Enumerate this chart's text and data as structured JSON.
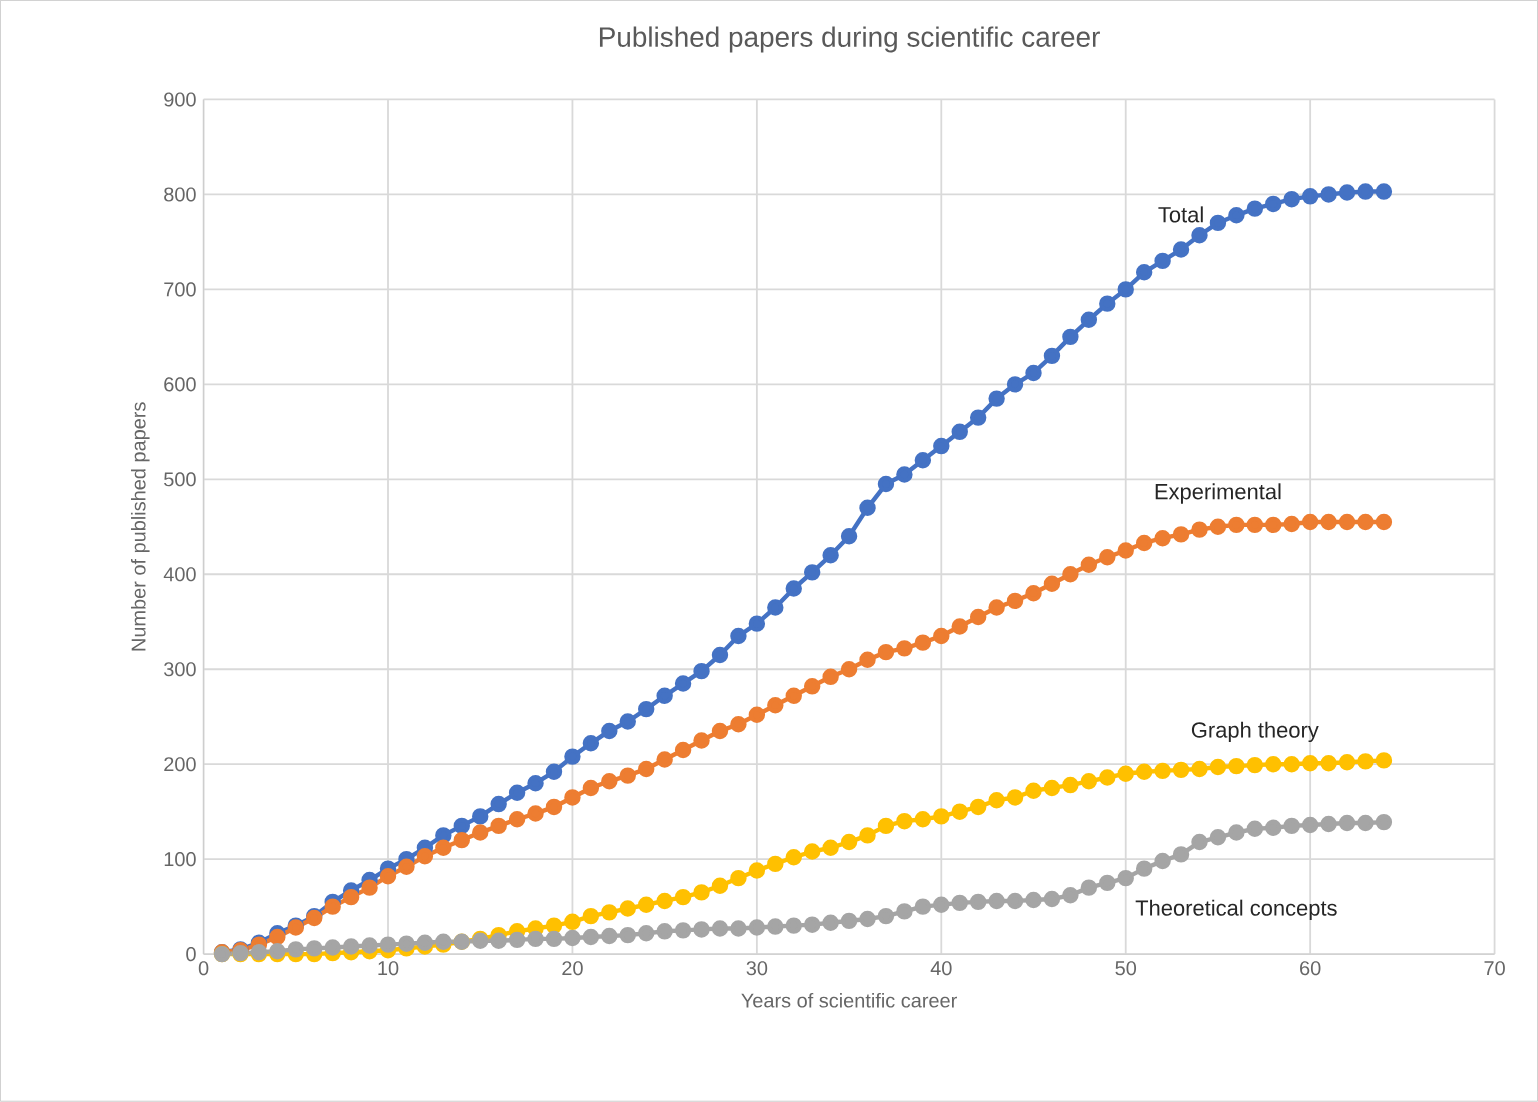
{
  "chart_data": {
    "type": "line",
    "title": "Published papers during scientific career",
    "xlabel": "Years of scientific career",
    "ylabel": "Number of published papers",
    "x": [
      1,
      2,
      3,
      4,
      5,
      6,
      7,
      8,
      9,
      10,
      11,
      12,
      13,
      14,
      15,
      16,
      17,
      18,
      19,
      20,
      21,
      22,
      23,
      24,
      25,
      26,
      27,
      28,
      29,
      30,
      31,
      32,
      33,
      34,
      35,
      36,
      37,
      38,
      39,
      40,
      41,
      42,
      43,
      44,
      45,
      46,
      47,
      48,
      49,
      50,
      51,
      52,
      53,
      54,
      55,
      56,
      57,
      58,
      59,
      60,
      61,
      62,
      63,
      64
    ],
    "series": [
      {
        "name": "Total",
        "color": "#4472c4",
        "values": [
          2,
          5,
          12,
          22,
          30,
          40,
          55,
          67,
          78,
          90,
          100,
          112,
          125,
          135,
          145,
          158,
          170,
          180,
          192,
          208,
          222,
          235,
          245,
          258,
          272,
          285,
          298,
          315,
          335,
          348,
          365,
          385,
          402,
          420,
          440,
          470,
          495,
          505,
          520,
          535,
          550,
          565,
          585,
          600,
          612,
          630,
          650,
          668,
          685,
          700,
          718,
          730,
          742,
          757,
          770,
          778,
          785,
          790,
          795,
          798,
          800,
          802,
          803,
          803
        ]
      },
      {
        "name": "Experimental",
        "color": "#ed7d31",
        "values": [
          2,
          4,
          10,
          18,
          28,
          38,
          50,
          60,
          70,
          82,
          92,
          103,
          112,
          120,
          128,
          135,
          142,
          148,
          155,
          165,
          175,
          182,
          188,
          195,
          205,
          215,
          225,
          235,
          242,
          252,
          262,
          272,
          282,
          292,
          300,
          310,
          318,
          322,
          328,
          335,
          345,
          355,
          365,
          372,
          380,
          390,
          400,
          410,
          418,
          425,
          433,
          438,
          442,
          447,
          450,
          452,
          452,
          452,
          453,
          455,
          455,
          455,
          455,
          455
        ]
      },
      {
        "name": "Graph theory",
        "color": "#ffc000",
        "values": [
          0,
          0,
          0,
          0,
          0,
          0,
          1,
          2,
          3,
          4,
          6,
          8,
          10,
          13,
          16,
          20,
          24,
          27,
          30,
          34,
          40,
          44,
          48,
          52,
          56,
          60,
          65,
          72,
          80,
          88,
          95,
          102,
          108,
          112,
          118,
          125,
          135,
          140,
          142,
          145,
          150,
          155,
          162,
          165,
          172,
          175,
          178,
          182,
          186,
          190,
          192,
          193,
          194,
          195,
          197,
          198,
          199,
          200,
          200,
          201,
          201,
          202,
          203,
          204
        ]
      },
      {
        "name": "Theoretical concepts",
        "color": "#a5a5a5",
        "values": [
          0,
          1,
          2,
          3,
          5,
          6,
          7,
          8,
          9,
          10,
          11,
          12,
          13,
          13,
          14,
          14,
          15,
          16,
          16,
          17,
          18,
          19,
          20,
          22,
          24,
          25,
          26,
          27,
          27,
          28,
          29,
          30,
          31,
          33,
          35,
          37,
          40,
          45,
          50,
          52,
          54,
          55,
          56,
          56,
          57,
          58,
          62,
          70,
          75,
          80,
          90,
          98,
          105,
          118,
          123,
          128,
          132,
          133,
          135,
          136,
          137,
          138,
          138,
          139
        ]
      }
    ],
    "xlim": [
      0,
      70
    ],
    "xticks": [
      0,
      10,
      20,
      30,
      40,
      50,
      60,
      70
    ],
    "ylim": [
      0,
      900
    ],
    "yticks": [
      0,
      100,
      200,
      300,
      400,
      500,
      600,
      700,
      800,
      900
    ],
    "grid": true,
    "legend": false,
    "marker": "circle",
    "line_style": "solid"
  }
}
